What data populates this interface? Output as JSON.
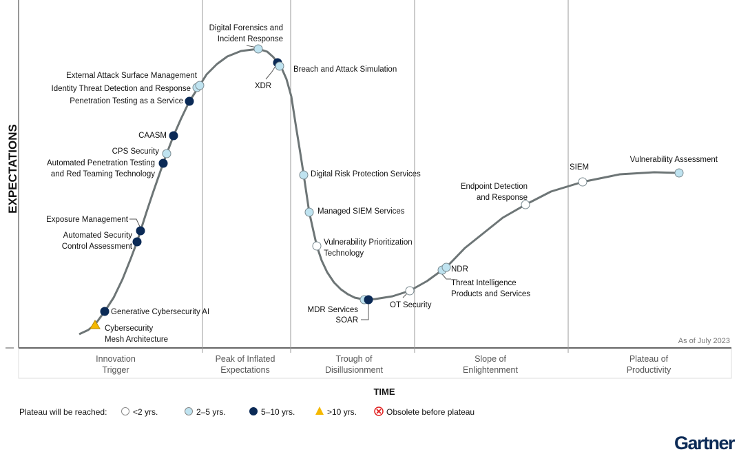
{
  "axis": {
    "y_label": "EXPECTATIONS",
    "x_label": "TIME",
    "as_of": "As of July 2023"
  },
  "phases": [
    "Innovation|Trigger",
    "Peak of Inflated|Expectations",
    "Trough of|Disillusionment",
    "Slope of|Enlightenment",
    "Plateau of|Productivity"
  ],
  "legend": {
    "title": "Plateau will be reached:",
    "items": [
      {
        "key": "lt2",
        "label": "<2 yrs.",
        "color": "#ffffff"
      },
      {
        "key": "2to5",
        "label": "2–5 yrs.",
        "color": "#bfe3f0"
      },
      {
        "key": "5to10",
        "label": "5–10 yrs.",
        "color": "#0b2a56"
      },
      {
        "key": "gt10",
        "label": ">10 yrs.",
        "color": "#f5b800"
      },
      {
        "key": "obsolete",
        "label": "Obsolete before plateau",
        "color": "#e02020"
      }
    ]
  },
  "technologies": [
    {
      "name": "Cybersecurity|Mesh Architecture",
      "plateau": "gt10"
    },
    {
      "name": "Generative Cybersecurity AI",
      "plateau": "5to10"
    },
    {
      "name": "Automated Security|Control Assessment",
      "plateau": "5to10"
    },
    {
      "name": "Exposure Management",
      "plateau": "5to10"
    },
    {
      "name": "Automated Penetration Testing|and Red Teaming Technology",
      "plateau": "5to10"
    },
    {
      "name": "CPS Security",
      "plateau": "2to5"
    },
    {
      "name": "CAASM",
      "plateau": "5to10"
    },
    {
      "name": "Penetration Testing as a Service",
      "plateau": "5to10"
    },
    {
      "name": "Identity Threat Detection and Response",
      "plateau": "2to5"
    },
    {
      "name": "External Attack Surface Management",
      "plateau": "2to5"
    },
    {
      "name": "Digital Forensics and|Incident Response",
      "plateau": "2to5"
    },
    {
      "name": "XDR",
      "plateau": "5to10"
    },
    {
      "name": "Breach and Attack Simulation",
      "plateau": "2to5"
    },
    {
      "name": "Digital Risk Protection Services",
      "plateau": "2to5"
    },
    {
      "name": "Managed SIEM Services",
      "plateau": "2to5"
    },
    {
      "name": "Vulnerability Prioritization|Technology",
      "plateau": "lt2"
    },
    {
      "name": "MDR Services",
      "plateau": "2to5"
    },
    {
      "name": "SOAR",
      "plateau": "5to10"
    },
    {
      "name": "OT Security",
      "plateau": "lt2"
    },
    {
      "name": "Threat Intelligence|Products and Services",
      "plateau": "2to5"
    },
    {
      "name": "NDR",
      "plateau": "2to5"
    },
    {
      "name": "Endpoint Detection|and Response",
      "plateau": "lt2"
    },
    {
      "name": "SIEM",
      "plateau": "lt2"
    },
    {
      "name": "Vulnerability Assessment",
      "plateau": "2to5"
    }
  ],
  "logo": "Gartner"
}
